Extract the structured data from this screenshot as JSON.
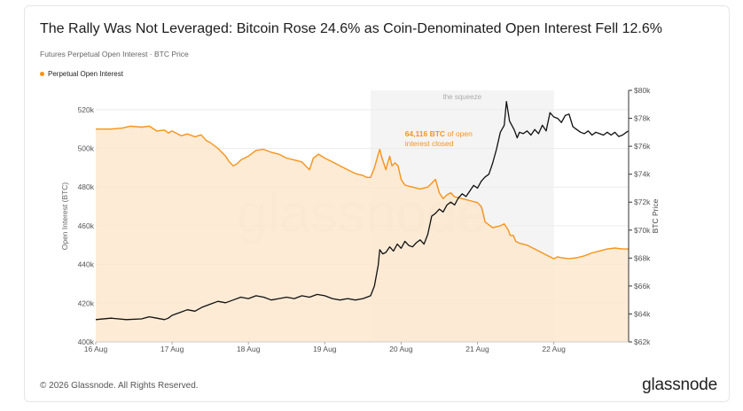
{
  "chart_data": {
    "type": "line",
    "title": "The Rally Was Not Leveraged: Bitcoin Rose 24.6% as Coin-Denominated Open Interest Fell 12.6%",
    "subtitle": "Futures Perpetual Open Interest · BTC Price",
    "watermark": "glassnode",
    "x_ticks": [
      {
        "x": 0,
        "label": "16 Aug"
      },
      {
        "x": 1,
        "label": "17 Aug"
      },
      {
        "x": 2,
        "label": "18 Aug"
      },
      {
        "x": 3,
        "label": "19 Aug"
      },
      {
        "x": 4,
        "label": "20 Aug"
      },
      {
        "x": 5,
        "label": "21 Aug"
      },
      {
        "x": 6,
        "label": "22 Aug"
      }
    ],
    "x_range": [
      0,
      6.98
    ],
    "y_left": {
      "label": "Open Interest (BTC)",
      "range": [
        400000,
        530000
      ],
      "ticks": [
        {
          "value": 400000,
          "label": "400k"
        },
        {
          "value": 420000,
          "label": "420k"
        },
        {
          "value": 440000,
          "label": "440k"
        },
        {
          "value": 460000,
          "label": "460k"
        },
        {
          "value": 480000,
          "label": "480k"
        },
        {
          "value": 500000,
          "label": "500k"
        },
        {
          "value": 520000,
          "label": "520k"
        }
      ]
    },
    "y_right": {
      "label": "BTC Price",
      "range": [
        62000,
        80000
      ],
      "ticks": [
        {
          "value": 62000,
          "label": "$62k"
        },
        {
          "value": 64000,
          "label": "$64k"
        },
        {
          "value": 66000,
          "label": "$66k"
        },
        {
          "value": 68000,
          "label": "$68k"
        },
        {
          "value": 70000,
          "label": "$70k"
        },
        {
          "value": 72000,
          "label": "$72k"
        },
        {
          "value": 74000,
          "label": "$74k"
        },
        {
          "value": 76000,
          "label": "$76k"
        },
        {
          "value": 78000,
          "label": "$78k"
        },
        {
          "value": 80000,
          "label": "$80k"
        }
      ]
    },
    "shaded_region": {
      "x_start": 3.6,
      "x_end": 6.0,
      "label": "the squeeze"
    },
    "annotation": {
      "x": 4.05,
      "bold": "64,116 BTC",
      "rest_line1": " of open",
      "line2": "interest closed"
    },
    "series": [
      {
        "name": "Perpetual Open Interest",
        "axis": "left",
        "color": "#f7931a",
        "points": [
          [
            0.0,
            510000
          ],
          [
            0.2,
            510000
          ],
          [
            0.35,
            510500
          ],
          [
            0.45,
            511500
          ],
          [
            0.6,
            511000
          ],
          [
            0.7,
            511500
          ],
          [
            0.8,
            509000
          ],
          [
            0.9,
            509500
          ],
          [
            0.95,
            508000
          ],
          [
            1.0,
            509000
          ],
          [
            1.05,
            508000
          ],
          [
            1.12,
            506500
          ],
          [
            1.2,
            507500
          ],
          [
            1.3,
            506000
          ],
          [
            1.38,
            507000
          ],
          [
            1.45,
            504000
          ],
          [
            1.5,
            503000
          ],
          [
            1.6,
            500000
          ],
          [
            1.7,
            496000
          ],
          [
            1.75,
            493000
          ],
          [
            1.8,
            491000
          ],
          [
            1.85,
            492000
          ],
          [
            1.9,
            494000
          ],
          [
            2.0,
            496000
          ],
          [
            2.1,
            499000
          ],
          [
            2.2,
            499500
          ],
          [
            2.3,
            498000
          ],
          [
            2.4,
            497000
          ],
          [
            2.5,
            495000
          ],
          [
            2.6,
            494000
          ],
          [
            2.7,
            493000
          ],
          [
            2.75,
            491000
          ],
          [
            2.8,
            489000
          ],
          [
            2.85,
            495000
          ],
          [
            2.92,
            497000
          ],
          [
            3.0,
            495000
          ],
          [
            3.1,
            493000
          ],
          [
            3.2,
            491000
          ],
          [
            3.3,
            489000
          ],
          [
            3.4,
            487000
          ],
          [
            3.5,
            486000
          ],
          [
            3.55,
            485000
          ],
          [
            3.6,
            485000
          ],
          [
            3.65,
            490000
          ],
          [
            3.7,
            497000
          ],
          [
            3.72,
            499500
          ],
          [
            3.75,
            495000
          ],
          [
            3.8,
            489000
          ],
          [
            3.85,
            496000
          ],
          [
            3.88,
            491000
          ],
          [
            3.92,
            492500
          ],
          [
            3.96,
            491000
          ],
          [
            4.0,
            484000
          ],
          [
            4.05,
            481000
          ],
          [
            4.15,
            480000
          ],
          [
            4.25,
            479000
          ],
          [
            4.35,
            480000
          ],
          [
            4.4,
            482000
          ],
          [
            4.45,
            484000
          ],
          [
            4.5,
            477000
          ],
          [
            4.55,
            474000
          ],
          [
            4.6,
            476000
          ],
          [
            4.65,
            477000
          ],
          [
            4.7,
            475000
          ],
          [
            4.8,
            474000
          ],
          [
            4.9,
            473000
          ],
          [
            5.0,
            472000
          ],
          [
            5.05,
            470000
          ],
          [
            5.07,
            467000
          ],
          [
            5.1,
            462000
          ],
          [
            5.2,
            459000
          ],
          [
            5.3,
            460000
          ],
          [
            5.35,
            461000
          ],
          [
            5.4,
            458000
          ],
          [
            5.43,
            455000
          ],
          [
            5.47,
            455000
          ],
          [
            5.5,
            452000
          ],
          [
            5.55,
            451000
          ],
          [
            5.65,
            450000
          ],
          [
            5.75,
            448000
          ],
          [
            5.85,
            446000
          ],
          [
            5.9,
            445000
          ],
          [
            5.95,
            444000
          ],
          [
            6.0,
            443000
          ],
          [
            6.05,
            444000
          ],
          [
            6.1,
            443500
          ],
          [
            6.2,
            443000
          ],
          [
            6.3,
            443500
          ],
          [
            6.4,
            444500
          ],
          [
            6.5,
            446000
          ],
          [
            6.6,
            447000
          ],
          [
            6.7,
            448000
          ],
          [
            6.8,
            448500
          ],
          [
            6.9,
            448000
          ],
          [
            6.98,
            448000
          ]
        ]
      },
      {
        "name": "BTC Price",
        "axis": "right",
        "color": "#111111",
        "points": [
          [
            0.0,
            63600
          ],
          [
            0.2,
            63700
          ],
          [
            0.4,
            63600
          ],
          [
            0.6,
            63650
          ],
          [
            0.7,
            63800
          ],
          [
            0.8,
            63700
          ],
          [
            0.9,
            63600
          ],
          [
            0.95,
            63700
          ],
          [
            1.0,
            63900
          ],
          [
            1.1,
            64100
          ],
          [
            1.2,
            64300
          ],
          [
            1.3,
            64200
          ],
          [
            1.4,
            64500
          ],
          [
            1.5,
            64700
          ],
          [
            1.6,
            64900
          ],
          [
            1.7,
            64800
          ],
          [
            1.8,
            65000
          ],
          [
            1.9,
            65200
          ],
          [
            2.0,
            65100
          ],
          [
            2.1,
            65300
          ],
          [
            2.2,
            65200
          ],
          [
            2.3,
            65000
          ],
          [
            2.4,
            65100
          ],
          [
            2.5,
            65200
          ],
          [
            2.6,
            65100
          ],
          [
            2.7,
            65300
          ],
          [
            2.8,
            65200
          ],
          [
            2.9,
            65400
          ],
          [
            3.0,
            65300
          ],
          [
            3.1,
            65100
          ],
          [
            3.2,
            65000
          ],
          [
            3.3,
            65100
          ],
          [
            3.4,
            65000
          ],
          [
            3.5,
            65100
          ],
          [
            3.6,
            65300
          ],
          [
            3.65,
            66000
          ],
          [
            3.7,
            67500
          ],
          [
            3.72,
            68600
          ],
          [
            3.76,
            68300
          ],
          [
            3.8,
            68400
          ],
          [
            3.85,
            68800
          ],
          [
            3.9,
            68500
          ],
          [
            3.95,
            69000
          ],
          [
            4.0,
            68700
          ],
          [
            4.05,
            69200
          ],
          [
            4.1,
            68900
          ],
          [
            4.15,
            68800
          ],
          [
            4.2,
            69100
          ],
          [
            4.25,
            69300
          ],
          [
            4.3,
            69000
          ],
          [
            4.35,
            69700
          ],
          [
            4.4,
            71000
          ],
          [
            4.45,
            71200
          ],
          [
            4.5,
            71500
          ],
          [
            4.55,
            71300
          ],
          [
            4.6,
            71800
          ],
          [
            4.65,
            72000
          ],
          [
            4.7,
            71800
          ],
          [
            4.75,
            72300
          ],
          [
            4.8,
            72600
          ],
          [
            4.85,
            72400
          ],
          [
            4.9,
            72800
          ],
          [
            4.95,
            73200
          ],
          [
            5.0,
            73000
          ],
          [
            5.05,
            73500
          ],
          [
            5.1,
            73800
          ],
          [
            5.15,
            74000
          ],
          [
            5.2,
            74800
          ],
          [
            5.25,
            75800
          ],
          [
            5.3,
            77000
          ],
          [
            5.35,
            77500
          ],
          [
            5.38,
            79200
          ],
          [
            5.42,
            77800
          ],
          [
            5.48,
            77200
          ],
          [
            5.5,
            76900
          ],
          [
            5.52,
            76600
          ],
          [
            5.55,
            77000
          ],
          [
            5.6,
            76900
          ],
          [
            5.65,
            77100
          ],
          [
            5.7,
            76800
          ],
          [
            5.75,
            77200
          ],
          [
            5.8,
            76900
          ],
          [
            5.85,
            77500
          ],
          [
            5.9,
            77100
          ],
          [
            5.95,
            78400
          ],
          [
            6.0,
            78100
          ],
          [
            6.05,
            78000
          ],
          [
            6.1,
            77700
          ],
          [
            6.15,
            78200
          ],
          [
            6.2,
            78300
          ],
          [
            6.25,
            77400
          ],
          [
            6.3,
            77200
          ],
          [
            6.35,
            77000
          ],
          [
            6.4,
            76900
          ],
          [
            6.45,
            77100
          ],
          [
            6.5,
            76800
          ],
          [
            6.55,
            77000
          ],
          [
            6.6,
            76900
          ],
          [
            6.65,
            76800
          ],
          [
            6.7,
            77000
          ],
          [
            6.75,
            76800
          ],
          [
            6.8,
            77000
          ],
          [
            6.85,
            76700
          ],
          [
            6.9,
            76800
          ],
          [
            6.95,
            77000
          ],
          [
            6.98,
            77100
          ]
        ]
      }
    ],
    "grid": "horizontal"
  },
  "footer": {
    "copyright": "© 2026 Glassnode. All Rights Reserved.",
    "brand": "glassnode"
  },
  "colors": {
    "oi_line": "#f7931a",
    "oi_fill": "#fde7cf",
    "btc_line": "#111111",
    "shade": "#ebebeb",
    "grid": "#ececec",
    "annotation": "#f7931a"
  }
}
